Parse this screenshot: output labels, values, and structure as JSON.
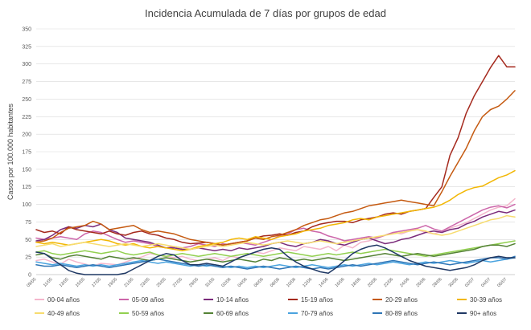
{
  "chart_data": {
    "type": "line",
    "title": "Incidencia Acumulada de 7 días por grupos de edad",
    "ylabel": "Casos por 100.000 habitantes",
    "xlabel": "",
    "ylim": [
      0,
      350
    ],
    "yticks": [
      0,
      25,
      50,
      75,
      100,
      125,
      150,
      175,
      200,
      225,
      250,
      275,
      300,
      325,
      350
    ],
    "grid": true,
    "legend_position": "bottom",
    "x": [
      "09/05",
      "10/05",
      "11/05",
      "12/05",
      "13/05",
      "14/05",
      "15/05",
      "16/05",
      "17/05",
      "18/05",
      "19/05",
      "20/05",
      "21/05",
      "22/05",
      "23/05",
      "24/05",
      "25/05",
      "26/05",
      "27/05",
      "28/05",
      "29/05",
      "30/05",
      "31/05",
      "01/06",
      "02/06",
      "03/06",
      "04/06",
      "05/06",
      "06/06",
      "07/06",
      "08/06",
      "09/06",
      "10/06",
      "11/06",
      "12/06",
      "13/06",
      "14/06",
      "15/06",
      "16/06",
      "17/06",
      "18/06",
      "19/06",
      "20/06",
      "21/06",
      "22/06",
      "23/06",
      "24/06",
      "25/06",
      "26/06",
      "27/06",
      "28/06",
      "29/06",
      "30/06",
      "01/07",
      "02/07",
      "03/07",
      "04/07",
      "05/07",
      "06/07",
      "07/07"
    ],
    "x_tick_labels": [
      "09/05",
      "11/05",
      "13/05",
      "15/05",
      "17/05",
      "19/05",
      "21/05",
      "23/05",
      "25/05",
      "27/05",
      "29/05",
      "31/05",
      "02/06",
      "04/06",
      "06/06",
      "08/06",
      "10/06",
      "12/06",
      "14/06",
      "16/06",
      "18/06",
      "20/06",
      "22/06",
      "24/06",
      "26/06",
      "28/06",
      "30/06",
      "02/07",
      "04/07",
      "06/07"
    ],
    "series": [
      {
        "name": "00-04 años",
        "color": "#f4b6cc",
        "values": [
          20,
          22,
          18,
          15,
          22,
          18,
          15,
          12,
          16,
          15,
          14,
          18,
          22,
          25,
          30,
          28,
          26,
          24,
          26,
          22,
          20,
          22,
          24,
          20,
          26,
          24,
          28,
          32,
          30,
          34,
          38,
          36,
          34,
          40,
          38,
          36,
          40,
          34,
          42,
          38,
          46,
          48,
          52,
          56,
          60,
          58,
          62,
          64,
          60,
          58,
          62,
          66,
          70,
          74,
          80,
          86,
          92,
          96,
          98,
          108
        ]
      },
      {
        "name": "05-09 años",
        "color": "#cc66aa",
        "values": [
          52,
          50,
          52,
          54,
          52,
          50,
          58,
          62,
          60,
          55,
          50,
          46,
          48,
          46,
          44,
          40,
          38,
          40,
          38,
          40,
          44,
          42,
          40,
          44,
          42,
          46,
          44,
          42,
          46,
          50,
          55,
          58,
          64,
          66,
          62,
          60,
          55,
          52,
          48,
          50,
          52,
          54,
          52,
          56,
          60,
          62,
          64,
          66,
          70,
          65,
          62,
          68,
          74,
          80,
          86,
          92,
          96,
          98,
          95,
          100
        ]
      },
      {
        "name": "10-14 años",
        "color": "#7b2c7b",
        "values": [
          48,
          50,
          56,
          64,
          68,
          66,
          70,
          68,
          72,
          64,
          60,
          52,
          50,
          48,
          46,
          42,
          38,
          38,
          36,
          36,
          38,
          36,
          34,
          36,
          34,
          38,
          36,
          38,
          40,
          44,
          46,
          42,
          40,
          44,
          46,
          50,
          48,
          44,
          42,
          46,
          50,
          52,
          48,
          44,
          46,
          50,
          52,
          56,
          60,
          62,
          60,
          64,
          66,
          72,
          76,
          82,
          86,
          90,
          88,
          92
        ]
      },
      {
        "name": "15-19 años",
        "color": "#a52a1e",
        "values": [
          64,
          60,
          62,
          58,
          68,
          64,
          62,
          60,
          58,
          62,
          58,
          56,
          60,
          62,
          58,
          56,
          52,
          50,
          46,
          44,
          45,
          46,
          44,
          42,
          44,
          46,
          48,
          52,
          55,
          56,
          58,
          56,
          60,
          62,
          68,
          72,
          74,
          76,
          76,
          74,
          78,
          80,
          82,
          86,
          88,
          86,
          90,
          92,
          94,
          110,
          125,
          170,
          195,
          230,
          255,
          275,
          295,
          312,
          296,
          296
        ]
      },
      {
        "name": "20-29 años",
        "color": "#c55a11",
        "values": [
          46,
          48,
          52,
          60,
          66,
          68,
          70,
          76,
          72,
          64,
          66,
          68,
          70,
          64,
          60,
          62,
          60,
          58,
          54,
          50,
          48,
          46,
          44,
          42,
          44,
          46,
          48,
          52,
          50,
          54,
          56,
          60,
          64,
          70,
          74,
          78,
          80,
          84,
          88,
          90,
          94,
          98,
          100,
          102,
          104,
          106,
          104,
          102,
          100,
          98,
          118,
          140,
          160,
          180,
          205,
          225,
          235,
          240,
          250,
          262
        ]
      },
      {
        "name": "30-39 años",
        "color": "#f2b705",
        "values": [
          46,
          44,
          46,
          44,
          42,
          44,
          46,
          48,
          50,
          48,
          44,
          42,
          44,
          40,
          38,
          40,
          38,
          36,
          34,
          36,
          40,
          42,
          44,
          46,
          50,
          52,
          50,
          54,
          52,
          50,
          54,
          56,
          58,
          62,
          64,
          66,
          70,
          72,
          74,
          78,
          80,
          78,
          82,
          84,
          86,
          88,
          90,
          92,
          94,
          96,
          100,
          106,
          114,
          120,
          124,
          126,
          132,
          138,
          142,
          148
        ]
      },
      {
        "name": "40-49 años",
        "color": "#f7dc6f",
        "values": [
          40,
          42,
          44,
          40,
          42,
          44,
          46,
          44,
          42,
          40,
          42,
          44,
          42,
          40,
          42,
          44,
          42,
          40,
          38,
          36,
          38,
          40,
          42,
          40,
          42,
          44,
          46,
          44,
          42,
          44,
          46,
          48,
          46,
          44,
          46,
          48,
          46,
          44,
          46,
          48,
          50,
          52,
          54,
          56,
          58,
          60,
          62,
          64,
          62,
          58,
          56,
          58,
          62,
          66,
          70,
          74,
          78,
          80,
          84,
          82
        ]
      },
      {
        "name": "50-59 años",
        "color": "#92d050",
        "values": [
          32,
          34,
          30,
          28,
          30,
          32,
          34,
          32,
          30,
          32,
          34,
          30,
          28,
          30,
          32,
          28,
          26,
          28,
          30,
          28,
          26,
          28,
          30,
          28,
          26,
          28,
          30,
          28,
          26,
          28,
          30,
          32,
          30,
          28,
          26,
          28,
          30,
          28,
          30,
          32,
          30,
          32,
          34,
          36,
          34,
          32,
          30,
          28,
          26,
          28,
          30,
          32,
          34,
          36,
          38,
          40,
          42,
          44,
          46,
          48
        ]
      },
      {
        "name": "60-69 años",
        "color": "#548235",
        "values": [
          28,
          30,
          24,
          22,
          26,
          28,
          26,
          24,
          22,
          26,
          24,
          22,
          24,
          22,
          20,
          22,
          24,
          22,
          20,
          18,
          20,
          22,
          20,
          18,
          20,
          22,
          20,
          18,
          22,
          20,
          24,
          22,
          20,
          22,
          20,
          22,
          24,
          22,
          20,
          22,
          24,
          26,
          28,
          30,
          28,
          26,
          28,
          30,
          28,
          26,
          28,
          30,
          32,
          34,
          36,
          40,
          42,
          42,
          40,
          44
        ]
      },
      {
        "name": "70-79 años",
        "color": "#4aa3df",
        "values": [
          18,
          16,
          14,
          16,
          14,
          12,
          14,
          12,
          14,
          12,
          14,
          16,
          18,
          20,
          18,
          16,
          18,
          16,
          14,
          12,
          14,
          12,
          14,
          12,
          10,
          12,
          10,
          12,
          10,
          12,
          14,
          12,
          10,
          12,
          14,
          12,
          10,
          12,
          14,
          12,
          14,
          16,
          14,
          16,
          18,
          16,
          14,
          16,
          18,
          16,
          18,
          20,
          18,
          16,
          18,
          20,
          18,
          20,
          22,
          24
        ]
      },
      {
        "name": "80-89 años",
        "color": "#2e75b6",
        "values": [
          14,
          12,
          12,
          14,
          12,
          10,
          12,
          14,
          12,
          10,
          12,
          14,
          16,
          18,
          20,
          22,
          20,
          18,
          16,
          14,
          12,
          14,
          12,
          10,
          12,
          10,
          8,
          10,
          12,
          10,
          8,
          10,
          12,
          10,
          8,
          10,
          8,
          10,
          12,
          14,
          12,
          14,
          16,
          18,
          20,
          18,
          16,
          14,
          16,
          18,
          16,
          14,
          16,
          18,
          20,
          22,
          24,
          24,
          22,
          26
        ]
      },
      {
        "name": "90+ años",
        "color": "#1f3864",
        "values": [
          32,
          30,
          22,
          14,
          6,
          2,
          0,
          0,
          0,
          0,
          0,
          2,
          8,
          14,
          20,
          26,
          30,
          28,
          20,
          14,
          14,
          16,
          14,
          12,
          18,
          24,
          28,
          32,
          36,
          38,
          36,
          26,
          18,
          12,
          8,
          4,
          2,
          10,
          20,
          30,
          36,
          40,
          42,
          38,
          32,
          26,
          20,
          16,
          12,
          10,
          8,
          6,
          8,
          10,
          14,
          20,
          24,
          26,
          24,
          24
        ]
      }
    ]
  }
}
